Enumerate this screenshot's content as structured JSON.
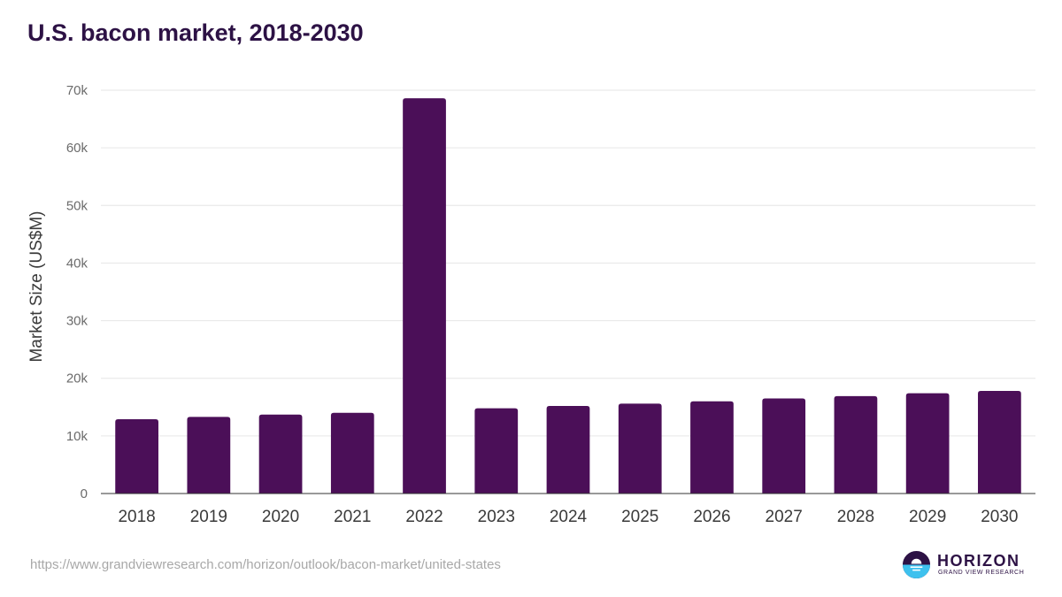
{
  "chart_data": {
    "type": "bar",
    "title": "U.S. bacon market, 2018-2030",
    "xlabel": "",
    "ylabel": "Market Size (US$M)",
    "categories": [
      "2018",
      "2019",
      "2020",
      "2021",
      "2022",
      "2023",
      "2024",
      "2025",
      "2026",
      "2027",
      "2028",
      "2029",
      "2030"
    ],
    "values": [
      12900,
      13300,
      13700,
      14000,
      68600,
      14800,
      15200,
      15600,
      16000,
      16500,
      16900,
      17400,
      17800
    ],
    "ylim": [
      0,
      70000
    ],
    "yticks": [
      0,
      10000,
      20000,
      30000,
      40000,
      50000,
      60000,
      70000
    ],
    "ytick_labels": [
      "0",
      "10k",
      "20k",
      "30k",
      "40k",
      "50k",
      "60k",
      "70k"
    ],
    "grid": true,
    "bar_color": "#4b0f58"
  },
  "source_url": "https://www.grandviewresearch.com/horizon/outlook/bacon-market/united-states",
  "logo": {
    "name": "HORIZON",
    "subtitle": "GRAND VIEW RESEARCH"
  }
}
